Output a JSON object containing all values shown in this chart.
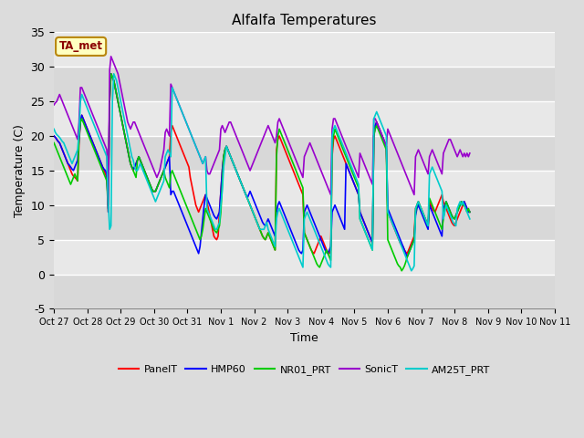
{
  "title": "Alfalfa Temperatures",
  "xlabel": "Time",
  "ylabel": "Temperature (C)",
  "ylim": [
    -5,
    35
  ],
  "annotation": "TA_met",
  "annotation_color": "#8B0000",
  "annotation_bg": "#FFFFC0",
  "annotation_border": "#B8860B",
  "fig_bg": "#DCDCDC",
  "plot_bg": "#DCDCDC",
  "x_tick_labels": [
    "Oct 27",
    "Oct 28",
    "Oct 29",
    "Oct 30",
    "Oct 31",
    "Nov 1",
    "Nov 2",
    "Nov 3",
    "Nov 4",
    "Nov 5",
    "Nov 6",
    "Nov 7",
    "Nov 8",
    "Nov 9",
    "Nov 10",
    "Nov 11"
  ],
  "yticks": [
    -5,
    0,
    5,
    10,
    15,
    20,
    25,
    30,
    35
  ],
  "band_colors": [
    "#D8D8D8",
    "#E8E8E8"
  ],
  "grid_color": "#FFFFFF",
  "series_order": [
    "PanelT",
    "HMP60",
    "NR01_PRT",
    "SonicT",
    "AM25T_PRT"
  ],
  "series": {
    "PanelT": {
      "color": "#FF0000",
      "linewidth": 1.2
    },
    "HMP60": {
      "color": "#0000FF",
      "linewidth": 1.2
    },
    "NR01_PRT": {
      "color": "#00CC00",
      "linewidth": 1.2
    },
    "SonicT": {
      "color": "#9900CC",
      "linewidth": 1.2
    },
    "AM25T_PRT": {
      "color": "#00CCCC",
      "linewidth": 1.2
    }
  },
  "x_numeric": [
    0.0,
    0.042,
    0.083,
    0.125,
    0.167,
    0.208,
    0.25,
    0.292,
    0.333,
    0.375,
    0.417,
    0.458,
    0.5,
    0.542,
    0.583,
    0.625,
    0.667,
    0.708,
    0.75,
    0.792,
    0.833,
    0.875,
    0.917,
    0.958,
    1.0,
    1.042,
    1.083,
    1.125,
    1.167,
    1.208,
    1.25,
    1.292,
    1.333,
    1.375,
    1.417,
    1.458,
    1.5,
    1.542,
    1.583,
    1.625,
    1.667,
    1.708,
    1.75,
    1.792,
    1.833,
    1.875,
    1.917,
    1.958,
    2.0,
    2.042,
    2.083,
    2.125,
    2.167,
    2.208,
    2.25,
    2.292,
    2.333,
    2.375,
    2.417,
    2.458,
    2.5,
    2.542,
    2.583,
    2.625,
    2.667,
    2.708,
    2.75,
    2.792,
    2.833,
    2.875,
    2.917,
    2.958,
    3.0,
    3.042,
    3.083,
    3.125,
    3.167,
    3.208,
    3.25,
    3.292,
    3.333,
    3.375,
    3.417,
    3.458,
    3.5,
    3.542,
    3.583,
    3.625,
    3.667,
    3.708,
    3.75,
    3.792,
    3.833,
    3.875,
    3.917,
    3.958,
    4.0,
    4.042,
    4.083,
    4.125,
    4.167,
    4.208,
    4.25,
    4.292,
    4.333,
    4.375,
    4.417,
    4.458,
    4.5,
    4.542,
    4.583,
    4.625,
    4.667,
    4.708,
    4.75,
    4.792,
    4.833,
    4.875,
    4.917,
    4.958,
    5.0,
    5.042,
    5.083,
    5.125,
    5.167,
    5.208,
    5.25,
    5.292,
    5.333,
    5.375,
    5.417,
    5.458,
    5.5,
    5.542,
    5.583,
    5.625,
    5.667,
    5.708,
    5.75,
    5.792,
    5.833,
    5.875,
    5.917,
    5.958,
    6.0,
    6.042,
    6.083,
    6.125,
    6.167,
    6.208,
    6.25,
    6.292,
    6.333,
    6.375,
    6.417,
    6.458,
    6.5,
    6.542,
    6.583,
    6.625,
    6.667,
    6.708,
    6.75,
    6.792,
    6.833,
    6.875,
    6.917,
    6.958,
    7.0,
    7.042,
    7.083,
    7.125,
    7.167,
    7.208,
    7.25,
    7.292,
    7.333,
    7.375,
    7.417,
    7.458,
    7.5,
    7.542,
    7.583,
    7.625,
    7.667,
    7.708,
    7.75,
    7.792,
    7.833,
    7.875,
    7.917,
    7.958,
    8.0,
    8.042,
    8.083,
    8.125,
    8.167,
    8.208,
    8.25,
    8.292,
    8.333,
    8.375,
    8.417,
    8.458,
    8.5,
    8.542,
    8.583,
    8.625,
    8.667,
    8.708,
    8.75,
    8.792,
    8.833,
    8.875,
    8.917,
    8.958,
    9.0,
    9.042,
    9.083,
    9.125,
    9.167,
    9.208,
    9.25,
    9.292,
    9.333,
    9.375,
    9.417,
    9.458,
    9.5,
    9.542,
    9.583,
    9.625,
    9.667,
    9.708,
    9.75,
    9.792,
    9.833,
    9.875,
    9.917,
    9.958,
    10.0,
    10.042,
    10.083,
    10.125,
    10.167,
    10.208,
    10.25,
    10.292,
    10.333,
    10.375,
    10.417,
    10.458,
    10.5,
    10.542,
    10.583,
    10.625,
    10.667,
    10.708,
    10.75,
    10.792,
    10.833,
    10.875,
    10.917,
    10.958,
    11.0,
    11.042,
    11.083,
    11.125,
    11.167,
    11.208,
    11.25,
    11.292,
    11.333,
    11.375,
    11.417,
    11.458,
    11.5,
    11.542,
    11.583,
    11.625,
    11.667,
    11.708,
    11.75,
    11.792,
    11.833,
    11.875,
    11.917,
    11.958,
    12.0,
    12.042,
    12.083,
    12.125,
    12.167,
    12.208,
    12.25,
    12.292,
    12.333,
    12.375,
    12.417,
    12.458,
    12.5,
    12.542,
    12.583,
    12.625,
    12.667,
    12.708,
    12.75,
    12.792,
    12.833,
    12.875,
    12.917,
    12.958,
    13.0,
    13.042,
    13.083,
    13.125,
    13.167,
    13.208,
    13.25,
    13.292,
    13.333,
    13.375,
    13.417,
    13.458,
    13.5,
    13.542,
    13.583,
    13.625,
    13.667,
    13.708,
    13.75,
    13.792,
    13.833,
    13.875,
    13.917,
    13.958,
    14.0,
    14.042,
    14.083,
    14.125,
    14.167,
    14.208,
    14.25,
    14.292,
    14.333,
    14.375,
    14.417,
    14.458,
    14.5,
    14.542,
    14.583,
    14.625,
    14.667,
    14.708,
    14.75,
    14.792,
    14.833,
    14.875,
    14.917,
    14.958,
    15.0
  ],
  "PanelT_y": [
    20.0,
    19.8,
    19.5,
    19.2,
    19.0,
    18.5,
    18.0,
    17.5,
    17.0,
    16.5,
    16.0,
    15.5,
    15.0,
    14.5,
    14.2,
    14.0,
    13.8,
    13.5,
    19.0,
    22.0,
    23.0,
    22.5,
    22.0,
    21.5,
    21.0,
    20.5,
    20.0,
    19.5,
    19.0,
    18.5,
    18.0,
    17.5,
    17.0,
    16.5,
    16.0,
    15.5,
    15.0,
    14.5,
    14.0,
    10.0,
    25.0,
    29.0,
    28.5,
    28.0,
    27.0,
    26.0,
    25.0,
    24.0,
    23.0,
    22.0,
    21.0,
    20.0,
    19.0,
    18.0,
    17.0,
    16.0,
    15.5,
    15.0,
    15.5,
    16.0,
    16.5,
    17.0,
    16.5,
    16.0,
    15.5,
    15.0,
    14.5,
    14.0,
    13.5,
    13.0,
    12.5,
    12.0,
    12.0,
    12.0,
    12.5,
    13.0,
    13.5,
    14.0,
    14.5,
    15.0,
    15.5,
    16.0,
    16.5,
    17.0,
    20.5,
    21.5,
    21.0,
    20.5,
    20.0,
    19.5,
    19.0,
    18.5,
    18.0,
    17.5,
    17.0,
    16.5,
    16.0,
    15.5,
    14.0,
    13.0,
    12.0,
    11.0,
    10.0,
    9.5,
    9.0,
    9.5,
    10.0,
    10.5,
    11.0,
    11.5,
    10.5,
    9.5,
    8.5,
    7.5,
    6.5,
    5.5,
    5.2,
    5.0,
    5.5,
    9.0,
    12.0,
    15.0,
    17.0,
    18.0,
    18.5,
    18.0,
    17.5,
    17.0,
    16.5,
    16.0,
    15.5,
    15.0,
    14.5,
    14.0,
    13.5,
    13.0,
    12.5,
    12.0,
    11.5,
    11.0,
    10.5,
    10.0,
    9.5,
    9.0,
    8.5,
    8.0,
    7.5,
    7.0,
    6.5,
    6.0,
    5.5,
    5.2,
    5.0,
    5.5,
    6.0,
    5.5,
    5.0,
    4.5,
    4.0,
    3.5,
    18.0,
    19.5,
    20.0,
    19.5,
    19.0,
    18.5,
    18.0,
    17.5,
    17.0,
    16.5,
    16.0,
    15.5,
    15.0,
    14.5,
    14.0,
    13.5,
    13.0,
    12.5,
    12.0,
    11.5,
    6.0,
    5.5,
    5.0,
    4.5,
    4.0,
    3.5,
    3.2,
    3.0,
    3.5,
    4.0,
    4.5,
    5.0,
    5.5,
    5.0,
    4.5,
    4.0,
    3.5,
    3.2,
    3.0,
    3.5,
    17.0,
    19.5,
    20.0,
    19.5,
    19.0,
    18.5,
    18.0,
    17.5,
    17.0,
    16.5,
    16.0,
    15.5,
    15.0,
    14.5,
    14.0,
    13.5,
    13.0,
    12.5,
    12.0,
    11.5,
    9.0,
    8.5,
    8.0,
    7.5,
    7.0,
    6.5,
    6.0,
    5.5,
    5.0,
    4.5,
    20.0,
    21.5,
    22.0,
    21.5,
    21.0,
    20.5,
    20.0,
    19.5,
    19.0,
    18.5,
    9.0,
    8.5,
    8.0,
    7.5,
    7.0,
    6.5,
    6.0,
    5.5,
    5.0,
    4.5,
    4.2,
    4.0,
    3.5,
    3.2,
    3.0,
    3.5,
    4.0,
    4.5,
    5.0,
    5.5,
    9.5,
    10.0,
    10.5,
    10.0,
    9.5,
    9.0,
    8.5,
    8.0,
    7.5,
    7.0,
    10.5,
    10.0,
    9.5,
    9.2,
    9.0,
    9.5,
    10.0,
    10.5,
    11.0,
    11.5,
    10.5,
    10.0,
    9.5,
    9.0,
    8.5,
    8.0,
    7.5,
    7.2,
    7.0,
    7.5,
    8.0,
    8.5,
    9.0,
    9.5,
    10.0,
    10.5,
    10.0,
    9.5,
    9.0,
    9.0
  ],
  "HMP60_y": [
    20.0,
    19.8,
    19.5,
    19.2,
    19.0,
    18.5,
    18.0,
    17.5,
    17.0,
    16.5,
    16.0,
    15.8,
    15.5,
    15.2,
    15.0,
    15.5,
    16.0,
    16.5,
    19.5,
    22.0,
    23.0,
    22.5,
    22.0,
    21.5,
    21.0,
    20.5,
    20.0,
    19.5,
    19.0,
    18.5,
    18.0,
    17.5,
    17.0,
    16.5,
    16.0,
    15.5,
    15.2,
    15.0,
    14.5,
    9.5,
    25.5,
    29.0,
    28.5,
    28.0,
    27.0,
    26.0,
    25.0,
    24.0,
    23.0,
    22.0,
    21.0,
    20.0,
    19.0,
    18.0,
    17.0,
    16.0,
    15.5,
    15.2,
    15.5,
    16.0,
    16.5,
    17.0,
    16.5,
    16.0,
    15.5,
    15.0,
    14.5,
    14.0,
    13.5,
    13.0,
    12.5,
    12.0,
    12.0,
    12.0,
    12.5,
    13.0,
    13.5,
    14.0,
    14.5,
    15.0,
    15.5,
    16.0,
    16.5,
    17.0,
    11.5,
    12.0,
    12.0,
    11.5,
    11.0,
    10.5,
    10.0,
    9.5,
    9.0,
    8.5,
    8.0,
    7.5,
    7.0,
    6.5,
    6.0,
    5.5,
    5.0,
    4.5,
    4.0,
    3.5,
    3.0,
    4.0,
    6.0,
    8.0,
    10.0,
    11.5,
    11.0,
    10.5,
    10.0,
    9.5,
    9.0,
    8.5,
    8.2,
    8.0,
    8.5,
    9.0,
    12.0,
    15.0,
    17.0,
    18.0,
    18.5,
    18.0,
    17.5,
    17.0,
    16.5,
    16.0,
    15.5,
    15.0,
    14.5,
    14.0,
    13.5,
    13.0,
    12.5,
    12.0,
    11.5,
    11.0,
    11.5,
    12.0,
    11.5,
    11.0,
    10.5,
    10.0,
    9.5,
    9.0,
    8.5,
    8.0,
    7.5,
    7.2,
    7.0,
    7.5,
    8.0,
    7.5,
    7.0,
    6.5,
    6.0,
    5.5,
    9.0,
    10.0,
    10.5,
    10.0,
    9.5,
    9.0,
    8.5,
    8.0,
    7.5,
    7.0,
    6.5,
    6.0,
    5.5,
    5.0,
    4.5,
    4.0,
    3.5,
    3.2,
    3.0,
    3.5,
    9.0,
    9.5,
    10.0,
    9.5,
    9.0,
    8.5,
    8.0,
    7.5,
    7.0,
    6.5,
    6.0,
    5.5,
    5.0,
    4.5,
    4.0,
    3.5,
    3.2,
    3.0,
    3.5,
    4.0,
    9.0,
    9.5,
    10.0,
    9.5,
    9.0,
    8.5,
    8.0,
    7.5,
    7.0,
    6.5,
    16.0,
    15.5,
    15.0,
    14.5,
    14.0,
    13.5,
    13.0,
    12.5,
    12.0,
    11.5,
    9.0,
    8.5,
    8.0,
    7.5,
    7.0,
    6.5,
    6.0,
    5.5,
    5.0,
    4.5,
    20.0,
    21.5,
    22.0,
    21.5,
    21.0,
    20.5,
    20.0,
    19.5,
    19.0,
    18.5,
    9.5,
    9.0,
    8.5,
    8.0,
    7.5,
    7.0,
    6.5,
    6.0,
    5.5,
    5.0,
    4.5,
    4.0,
    3.5,
    3.0,
    2.5,
    3.0,
    3.5,
    4.0,
    4.5,
    5.0,
    8.5,
    9.5,
    10.0,
    9.5,
    9.0,
    8.5,
    8.0,
    7.5,
    7.0,
    6.5,
    10.0,
    9.5,
    9.0,
    8.5,
    8.0,
    7.5,
    7.0,
    6.5,
    6.0,
    5.5,
    9.5,
    10.0,
    10.5,
    10.0,
    9.5,
    9.0,
    8.5,
    8.2,
    8.0,
    8.5,
    9.0,
    9.5,
    10.0,
    10.5,
    10.0,
    10.5,
    10.0,
    9.5,
    9.0,
    9.0
  ],
  "NR01_PRT_y": [
    19.0,
    18.5,
    18.0,
    17.5,
    17.0,
    16.5,
    16.0,
    15.5,
    15.0,
    14.5,
    14.0,
    13.5,
    13.0,
    13.5,
    14.0,
    14.5,
    14.0,
    13.5,
    20.0,
    22.0,
    22.5,
    22.0,
    21.5,
    21.0,
    20.5,
    20.0,
    19.5,
    19.0,
    18.5,
    18.0,
    17.5,
    17.0,
    16.5,
    16.0,
    15.5,
    15.0,
    14.5,
    14.0,
    13.5,
    9.0,
    25.0,
    29.0,
    28.5,
    28.0,
    27.0,
    26.0,
    25.0,
    24.0,
    23.0,
    22.0,
    21.0,
    20.0,
    19.0,
    18.0,
    17.0,
    16.0,
    15.5,
    15.0,
    14.5,
    14.0,
    16.5,
    17.0,
    16.5,
    16.0,
    15.5,
    15.0,
    14.5,
    14.0,
    13.5,
    13.0,
    12.5,
    12.0,
    12.0,
    12.0,
    12.5,
    13.0,
    13.5,
    14.0,
    14.5,
    15.0,
    14.0,
    13.5,
    13.0,
    12.5,
    14.5,
    15.0,
    14.5,
    14.0,
    13.5,
    13.0,
    12.5,
    12.0,
    11.5,
    11.0,
    10.5,
    10.0,
    9.5,
    9.0,
    8.5,
    8.0,
    7.5,
    7.0,
    6.5,
    6.0,
    5.5,
    5.0,
    5.5,
    6.5,
    8.0,
    9.5,
    9.0,
    8.5,
    8.0,
    7.5,
    7.0,
    6.5,
    6.2,
    6.0,
    6.5,
    7.0,
    9.0,
    13.0,
    17.0,
    18.0,
    18.5,
    18.0,
    17.5,
    17.0,
    16.5,
    16.0,
    15.5,
    15.0,
    14.5,
    14.0,
    13.5,
    13.0,
    12.5,
    12.0,
    11.5,
    11.0,
    10.5,
    10.0,
    9.5,
    9.0,
    8.5,
    8.0,
    7.5,
    7.0,
    6.5,
    6.0,
    5.5,
    5.2,
    5.0,
    5.5,
    6.0,
    5.5,
    5.0,
    4.5,
    4.0,
    3.5,
    17.0,
    20.0,
    21.0,
    20.5,
    20.0,
    19.5,
    19.0,
    18.5,
    18.0,
    17.5,
    17.0,
    16.5,
    16.0,
    15.5,
    15.0,
    14.5,
    14.0,
    13.5,
    13.0,
    12.5,
    6.0,
    5.5,
    5.0,
    4.5,
    4.0,
    3.5,
    3.0,
    2.5,
    2.0,
    1.5,
    1.2,
    1.0,
    1.5,
    2.0,
    2.5,
    3.0,
    3.5,
    3.0,
    2.5,
    2.0,
    18.0,
    20.0,
    21.0,
    20.5,
    20.0,
    19.5,
    19.0,
    18.5,
    18.0,
    17.5,
    17.0,
    16.5,
    16.0,
    15.5,
    15.0,
    14.5,
    14.0,
    13.5,
    13.0,
    12.5,
    8.0,
    7.5,
    7.0,
    6.5,
    6.0,
    5.5,
    5.0,
    4.5,
    4.0,
    3.5,
    20.0,
    21.0,
    21.5,
    21.0,
    20.5,
    20.0,
    19.5,
    19.0,
    18.5,
    18.0,
    5.0,
    4.5,
    4.0,
    3.5,
    3.0,
    2.5,
    2.0,
    1.5,
    1.2,
    1.0,
    0.5,
    0.8,
    1.2,
    1.8,
    2.5,
    3.0,
    3.5,
    4.0,
    4.5,
    5.0,
    9.0,
    10.0,
    10.5,
    10.0,
    9.5,
    9.0,
    8.5,
    8.0,
    7.5,
    7.0,
    11.0,
    10.5,
    10.0,
    9.5,
    9.0,
    8.5,
    8.0,
    7.5,
    7.0,
    6.5,
    8.0,
    9.5,
    10.5,
    10.0,
    9.5,
    9.0,
    8.5,
    8.2,
    8.0,
    8.5,
    9.0,
    9.5,
    10.0,
    10.5,
    10.0,
    10.0,
    9.5,
    9.0,
    9.5,
    9.0
  ],
  "SonicT_y": [
    24.5,
    24.8,
    25.0,
    25.5,
    26.0,
    25.5,
    25.0,
    24.5,
    24.0,
    23.5,
    23.0,
    22.5,
    22.0,
    21.5,
    21.0,
    20.5,
    20.0,
    19.5,
    22.0,
    27.0,
    27.0,
    26.5,
    26.0,
    25.5,
    25.0,
    24.5,
    24.0,
    23.5,
    23.0,
    22.5,
    22.0,
    21.5,
    21.0,
    20.5,
    20.0,
    19.5,
    19.0,
    18.5,
    18.0,
    9.0,
    29.5,
    31.5,
    31.0,
    30.5,
    30.0,
    29.5,
    29.0,
    28.0,
    27.0,
    26.0,
    25.0,
    24.0,
    23.0,
    22.0,
    21.5,
    21.0,
    21.5,
    22.0,
    22.0,
    21.5,
    21.0,
    20.5,
    20.0,
    19.5,
    19.0,
    18.5,
    18.0,
    17.5,
    17.0,
    16.5,
    16.0,
    15.5,
    15.0,
    14.5,
    14.0,
    14.5,
    15.0,
    16.0,
    17.0,
    18.0,
    20.5,
    21.0,
    20.5,
    20.0,
    27.5,
    27.0,
    26.5,
    26.0,
    25.5,
    25.0,
    24.5,
    24.0,
    23.5,
    23.0,
    22.5,
    22.0,
    21.5,
    21.0,
    20.5,
    20.0,
    19.5,
    19.0,
    18.5,
    18.0,
    17.5,
    17.0,
    16.5,
    16.0,
    16.5,
    17.0,
    15.0,
    14.5,
    14.5,
    15.0,
    15.5,
    16.0,
    16.5,
    17.0,
    17.5,
    18.0,
    21.0,
    21.5,
    21.0,
    20.5,
    21.0,
    21.5,
    22.0,
    22.0,
    21.5,
    21.0,
    20.5,
    20.0,
    19.5,
    19.0,
    18.5,
    18.0,
    17.5,
    17.0,
    16.5,
    16.0,
    15.5,
    15.0,
    15.5,
    16.0,
    16.5,
    17.0,
    17.5,
    18.0,
    18.5,
    19.0,
    19.5,
    20.0,
    20.5,
    21.0,
    21.5,
    21.0,
    20.5,
    20.0,
    19.5,
    19.0,
    20.0,
    22.0,
    22.5,
    22.0,
    21.5,
    21.0,
    20.5,
    20.0,
    19.5,
    19.0,
    18.5,
    18.0,
    17.5,
    17.0,
    16.5,
    16.0,
    15.5,
    15.0,
    14.5,
    14.0,
    17.0,
    17.5,
    18.0,
    18.5,
    19.0,
    18.5,
    18.0,
    17.5,
    17.0,
    16.5,
    16.0,
    15.5,
    15.0,
    14.5,
    14.0,
    13.5,
    13.0,
    12.5,
    12.0,
    11.5,
    21.0,
    22.5,
    22.5,
    22.0,
    21.5,
    21.0,
    20.5,
    20.0,
    19.5,
    19.0,
    18.5,
    18.0,
    17.5,
    17.0,
    16.5,
    16.0,
    15.5,
    15.0,
    14.5,
    14.0,
    17.5,
    17.0,
    16.5,
    16.0,
    15.5,
    15.0,
    14.5,
    14.0,
    13.5,
    13.0,
    22.5,
    22.5,
    22.0,
    21.5,
    21.0,
    20.5,
    20.0,
    19.5,
    19.0,
    18.5,
    21.0,
    20.5,
    20.0,
    19.5,
    19.0,
    18.5,
    18.0,
    17.5,
    17.0,
    16.5,
    16.0,
    15.5,
    15.0,
    14.5,
    14.0,
    13.5,
    13.0,
    12.5,
    12.0,
    11.5,
    17.0,
    17.5,
    18.0,
    17.5,
    17.0,
    16.5,
    16.0,
    15.5,
    15.0,
    14.5,
    17.0,
    17.5,
    18.0,
    17.5,
    17.0,
    16.5,
    16.0,
    15.5,
    15.0,
    14.5,
    17.5,
    18.0,
    18.5,
    19.0,
    19.5,
    19.5,
    19.0,
    18.5,
    18.0,
    17.5,
    17.0,
    17.5,
    18.0,
    17.5,
    17.0,
    17.5,
    17.0,
    17.5,
    17.0,
    17.5
  ],
  "AM25T_PRT_y": [
    21.0,
    20.5,
    20.2,
    20.0,
    19.8,
    19.5,
    19.2,
    19.0,
    18.5,
    18.0,
    17.5,
    17.0,
    16.5,
    16.0,
    16.5,
    17.0,
    17.5,
    18.0,
    20.5,
    25.0,
    26.0,
    25.5,
    25.0,
    24.5,
    24.0,
    23.5,
    23.0,
    22.5,
    22.0,
    21.5,
    21.0,
    20.5,
    20.0,
    19.5,
    19.0,
    18.5,
    18.0,
    17.5,
    17.0,
    10.5,
    6.5,
    7.0,
    25.0,
    29.0,
    28.5,
    28.0,
    27.0,
    26.0,
    25.0,
    24.0,
    23.0,
    22.0,
    21.0,
    20.0,
    19.0,
    18.0,
    17.0,
    16.5,
    15.5,
    15.0,
    15.0,
    15.5,
    16.0,
    15.5,
    15.0,
    14.5,
    14.0,
    13.5,
    13.0,
    12.5,
    12.0,
    11.5,
    11.0,
    10.5,
    11.0,
    11.5,
    12.0,
    12.5,
    13.0,
    13.5,
    17.0,
    17.5,
    18.0,
    17.5,
    17.0,
    27.0,
    26.5,
    26.0,
    25.5,
    25.0,
    24.5,
    24.0,
    23.5,
    23.0,
    22.5,
    22.0,
    21.5,
    21.0,
    20.5,
    20.0,
    19.5,
    19.0,
    18.5,
    18.0,
    17.5,
    17.0,
    16.5,
    16.0,
    16.5,
    17.0,
    9.5,
    9.0,
    8.5,
    8.0,
    7.5,
    7.0,
    6.5,
    6.5,
    7.0,
    7.5,
    10.0,
    12.0,
    15.5,
    17.0,
    18.5,
    18.0,
    17.5,
    17.0,
    16.5,
    16.0,
    15.5,
    15.0,
    14.5,
    14.0,
    13.5,
    13.0,
    12.5,
    12.0,
    11.5,
    11.0,
    10.5,
    10.0,
    9.5,
    9.0,
    8.5,
    8.0,
    7.5,
    7.0,
    6.5,
    6.5,
    6.5,
    6.5,
    7.0,
    7.5,
    6.5,
    6.0,
    5.5,
    5.0,
    4.5,
    4.0,
    8.0,
    9.0,
    9.5,
    9.0,
    8.5,
    8.0,
    7.5,
    7.0,
    6.5,
    6.0,
    5.5,
    5.0,
    4.5,
    4.0,
    3.5,
    3.0,
    2.5,
    2.0,
    1.5,
    1.0,
    8.0,
    8.5,
    9.0,
    8.5,
    8.0,
    7.5,
    7.0,
    6.5,
    6.0,
    5.5,
    5.0,
    4.5,
    4.0,
    3.5,
    3.0,
    2.5,
    2.0,
    1.5,
    1.2,
    1.0,
    20.0,
    21.0,
    21.5,
    21.0,
    20.5,
    20.0,
    19.5,
    19.0,
    18.5,
    18.0,
    17.5,
    17.0,
    16.5,
    16.0,
    15.5,
    15.0,
    14.5,
    14.0,
    13.5,
    13.0,
    8.0,
    7.5,
    7.0,
    6.5,
    6.0,
    5.5,
    5.0,
    4.5,
    4.0,
    3.5,
    22.5,
    23.0,
    23.5,
    23.0,
    22.5,
    22.0,
    21.5,
    21.0,
    20.5,
    20.0,
    9.0,
    8.5,
    8.0,
    7.5,
    7.0,
    6.5,
    6.0,
    5.5,
    5.0,
    4.5,
    4.0,
    3.5,
    3.0,
    2.5,
    2.0,
    1.5,
    1.0,
    0.5,
    0.8,
    1.2,
    9.5,
    10.0,
    10.5,
    10.0,
    9.5,
    9.0,
    8.5,
    8.0,
    7.5,
    7.0,
    14.5,
    15.0,
    15.5,
    15.0,
    14.5,
    14.0,
    13.5,
    13.0,
    12.5,
    12.0,
    8.0,
    9.0,
    10.0,
    9.5,
    9.0,
    8.5,
    8.0,
    7.5,
    7.2,
    7.0,
    9.5,
    10.0,
    10.5,
    10.0,
    10.5,
    10.0,
    9.5,
    9.0,
    8.5,
    8.0
  ]
}
